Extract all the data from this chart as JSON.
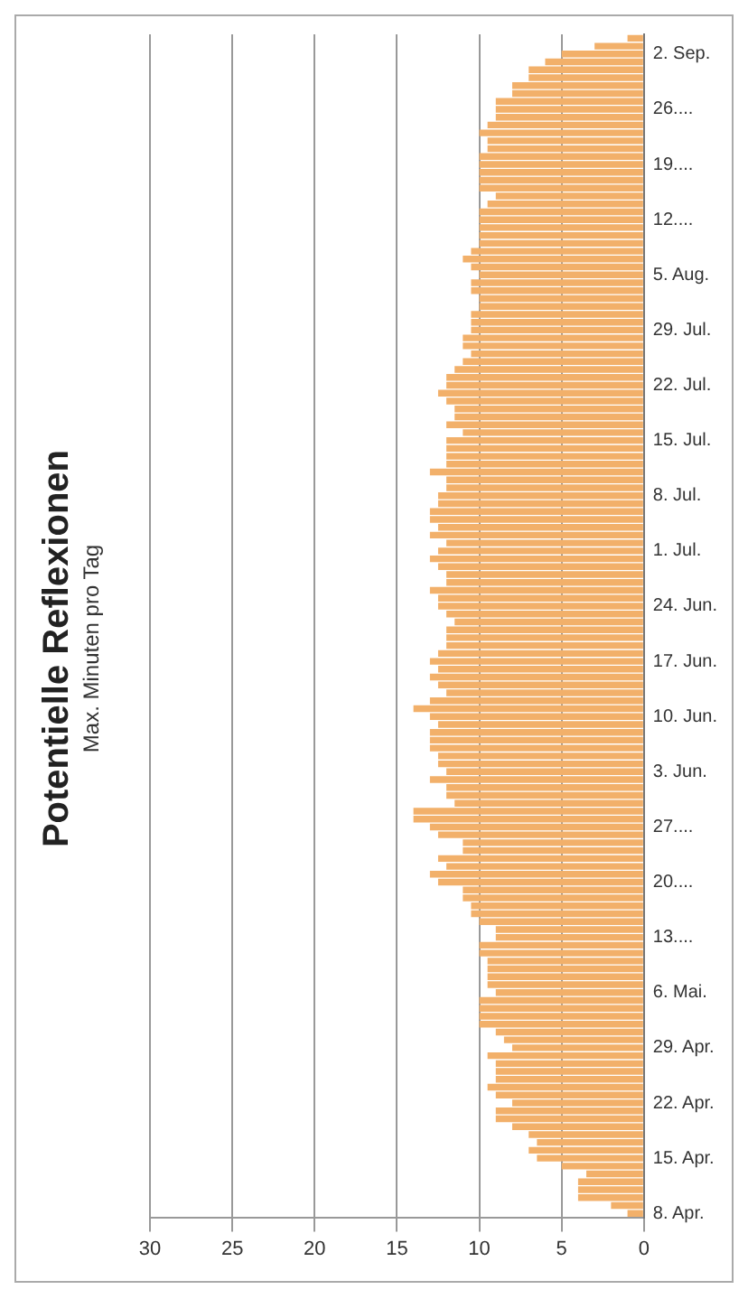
{
  "chart_data": {
    "type": "bar",
    "orientation": "horizontal",
    "title": "Potentielle Reflexionen",
    "subtitle": "Max. Minuten pro Tag",
    "categories": [
      null,
      null,
      "2. Sep.",
      null,
      null,
      null,
      null,
      null,
      null,
      "26....",
      null,
      null,
      null,
      null,
      null,
      null,
      "19....",
      null,
      null,
      null,
      null,
      null,
      null,
      "12....",
      null,
      null,
      null,
      null,
      null,
      null,
      "5. Aug.",
      null,
      null,
      null,
      null,
      null,
      null,
      "29. Jul.",
      null,
      null,
      null,
      null,
      null,
      null,
      "22. Jul.",
      null,
      null,
      null,
      null,
      null,
      null,
      "15. Jul.",
      null,
      null,
      null,
      null,
      null,
      null,
      "8. Jul.",
      null,
      null,
      null,
      null,
      null,
      null,
      "1. Jul.",
      null,
      null,
      null,
      null,
      null,
      null,
      "24. Jun.",
      null,
      null,
      null,
      null,
      null,
      null,
      "17. Jun.",
      null,
      null,
      null,
      null,
      null,
      null,
      "10. Jun.",
      null,
      null,
      null,
      null,
      null,
      null,
      "3. Jun.",
      null,
      null,
      null,
      null,
      null,
      null,
      "27....",
      null,
      null,
      null,
      null,
      null,
      null,
      "20....",
      null,
      null,
      null,
      null,
      null,
      null,
      "13....",
      null,
      null,
      null,
      null,
      null,
      null,
      "6. Mai.",
      null,
      null,
      null,
      null,
      null,
      null,
      "29. Apr.",
      null,
      null,
      null,
      null,
      null,
      null,
      "22. Apr.",
      null,
      null,
      null,
      null,
      null,
      null,
      "15. Apr.",
      null,
      null,
      null,
      null,
      null,
      null,
      "8. Apr."
    ],
    "values": [
      1,
      3,
      5,
      6,
      7,
      7,
      8,
      8,
      9,
      9,
      9,
      9.5,
      10,
      9.5,
      9.5,
      10,
      10,
      10,
      10,
      10,
      9,
      9.5,
      10,
      10,
      10,
      10,
      10,
      10.5,
      11,
      10.5,
      10,
      10.5,
      10.5,
      10,
      10,
      10.5,
      10.5,
      10.5,
      11,
      11,
      10.5,
      11,
      11.5,
      12,
      12,
      12.5,
      12,
      11.5,
      11.5,
      12,
      11,
      12,
      12,
      12,
      12,
      13,
      12,
      12,
      12.5,
      12.5,
      13,
      13,
      12.5,
      13,
      12,
      12.5,
      13,
      12.5,
      12,
      12,
      13,
      12.5,
      12.5,
      12,
      11.5,
      12,
      12,
      12,
      12.5,
      13,
      12.5,
      13,
      12.5,
      12,
      13,
      14,
      13,
      12.5,
      13,
      13,
      13,
      12.5,
      12.5,
      12,
      13,
      12,
      12,
      11.5,
      14,
      14,
      13,
      12.5,
      11,
      11,
      12.5,
      12,
      13,
      12.5,
      11,
      11,
      10.5,
      10.5,
      10,
      9,
      9,
      10,
      10,
      9.5,
      9.5,
      9.5,
      9.5,
      9,
      10,
      10,
      10,
      10,
      9,
      8.5,
      8,
      9.5,
      9,
      9,
      9,
      9.5,
      9,
      8,
      9,
      9,
      8,
      7,
      6.5,
      7,
      6.5,
      5,
      3.5,
      4,
      4,
      4,
      2,
      1
    ],
    "color": "#f2b06a",
    "xlim": [
      30,
      0
    ],
    "xticks": [
      0,
      5,
      10,
      15,
      20,
      25,
      30
    ],
    "grid": "x"
  }
}
